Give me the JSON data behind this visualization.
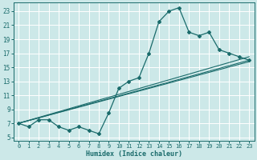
{
  "xlabel": "Humidex (Indice chaleur)",
  "bg_color": "#cce8e8",
  "grid_color": "#ffffff",
  "line_color": "#1a6b6b",
  "xlim": [
    -0.5,
    23.5
  ],
  "ylim": [
    4.5,
    24.2
  ],
  "xticks": [
    0,
    1,
    2,
    3,
    4,
    5,
    6,
    7,
    8,
    9,
    10,
    11,
    12,
    13,
    14,
    15,
    16,
    17,
    18,
    19,
    20,
    21,
    22,
    23
  ],
  "yticks": [
    5,
    7,
    9,
    11,
    13,
    15,
    17,
    19,
    21,
    23
  ],
  "curve1_x": [
    0,
    1,
    2,
    3,
    4,
    5,
    6,
    7,
    8,
    9,
    10,
    11,
    12,
    13,
    14,
    15,
    16,
    17,
    18,
    19,
    20,
    21,
    22,
    23
  ],
  "curve1_y": [
    7.0,
    6.5,
    7.5,
    7.5,
    6.5,
    6.0,
    6.5,
    6.0,
    5.5,
    8.5,
    12.0,
    13.0,
    13.5,
    17.0,
    21.5,
    23.0,
    23.5,
    20.0,
    19.5,
    20.0,
    17.5,
    17.0,
    16.5,
    16.0
  ],
  "line2_x": [
    0,
    23
  ],
  "line2_y": [
    7.0,
    16.5
  ],
  "line3_x": [
    0,
    23
  ],
  "line3_y": [
    7.0,
    15.8
  ],
  "line4_x": [
    0,
    23
  ],
  "line4_y": [
    7.0,
    16.0
  ]
}
